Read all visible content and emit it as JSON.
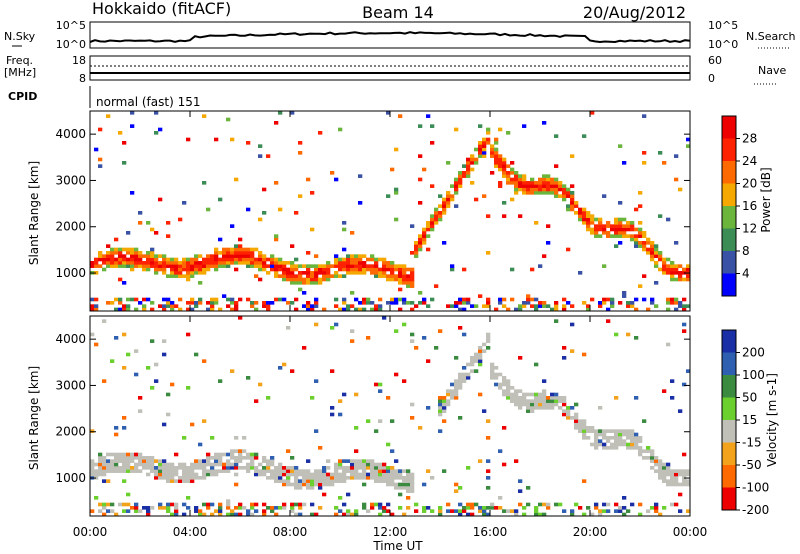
{
  "header": {
    "left_title": "Hokkaido (fitACF)",
    "center_title": "Beam 14",
    "right_title": "20/Aug/2012"
  },
  "strip_panels": {
    "nsky_label": "N.Sky",
    "nsky_ticks": [
      "10^5",
      "10^0"
    ],
    "nsky_right_ticks": [
      "10^5",
      "10^0"
    ],
    "nsearch_label": "N.Search",
    "freq_label_1": "Freq.",
    "freq_label_2": "[MHz]",
    "freq_ticks": [
      "18",
      "8"
    ],
    "nave_ticks": [
      "60",
      "0"
    ],
    "nave_label": "Nave",
    "cpid_label": "CPID",
    "cpid_value": "normal (fast) 151"
  },
  "colors": {
    "power_scale": [
      "#0000ff",
      "#3a52a6",
      "#3b8c55",
      "#6cb53d",
      "#f5a900",
      "#ff6a00",
      "#ff2200",
      "#ee0000"
    ],
    "velocity_scale": [
      "#1a2ea6",
      "#2f5fb0",
      "#3a8a3f",
      "#6bcf2e",
      "#c0c0b8",
      "#f3a21b",
      "#ff6a00",
      "#ee0000"
    ]
  },
  "chart_data": [
    {
      "type": "heatmap",
      "panel": "power",
      "ylabel": "Slant Range [km]",
      "xlabel": "Time UT",
      "xlim": [
        "00:00",
        "24:00"
      ],
      "ylim": [
        180,
        4500
      ],
      "x_ticks": [
        "00:00",
        "04:00",
        "08:00",
        "12:00",
        "16:00",
        "20:00",
        "00:00"
      ],
      "y_ticks": [
        "1000",
        "2000",
        "3000",
        "4000"
      ],
      "colorbar": {
        "label": "Power [dB]",
        "ticks": [
          "4",
          "8",
          "12",
          "16",
          "20",
          "24",
          "28"
        ],
        "range": [
          0,
          32
        ]
      },
      "features": [
        {
          "name": "main band",
          "x": [
            "00:00",
            "13:00"
          ],
          "y": [
            800,
            1600
          ],
          "value_range": [
            16,
            30
          ]
        },
        {
          "name": "rising trace",
          "x": [
            "13:00",
            "16:00"
          ],
          "y": [
            1500,
            4000
          ],
          "value_range": [
            20,
            30
          ]
        },
        {
          "name": "descending trace",
          "x": [
            "16:00",
            "24:00"
          ],
          "y": [
            1000,
            3500
          ],
          "value_range": [
            20,
            30
          ]
        }
      ]
    },
    {
      "type": "heatmap",
      "panel": "velocity",
      "ylabel": "Slant Range [km]",
      "xlabel": "Time UT",
      "xlim": [
        "00:00",
        "24:00"
      ],
      "ylim": [
        180,
        4500
      ],
      "x_ticks": [
        "00:00",
        "04:00",
        "08:00",
        "12:00",
        "16:00",
        "20:00",
        "00:00"
      ],
      "y_ticks": [
        "1000",
        "2000",
        "3000",
        "4000"
      ],
      "colorbar": {
        "label": "Velocity [m s-1]",
        "ticks": [
          "200",
          "100",
          "50",
          "15",
          "-15",
          "-50",
          "-100",
          "-200"
        ],
        "range": [
          -250,
          250
        ]
      },
      "features": [
        {
          "name": "ground scatter band",
          "x": [
            "00:00",
            "13:00"
          ],
          "y": [
            800,
            1600
          ],
          "value_range": [
            -15,
            15
          ]
        },
        {
          "name": "rising trace",
          "x": [
            "14:00",
            "16:00"
          ],
          "y": [
            2500,
            4000
          ],
          "value_range": [
            -50,
            15
          ]
        },
        {
          "name": "descending trace",
          "x": [
            "16:00",
            "24:00"
          ],
          "y": [
            1000,
            3200
          ],
          "value_range": [
            -15,
            15
          ]
        }
      ]
    }
  ]
}
